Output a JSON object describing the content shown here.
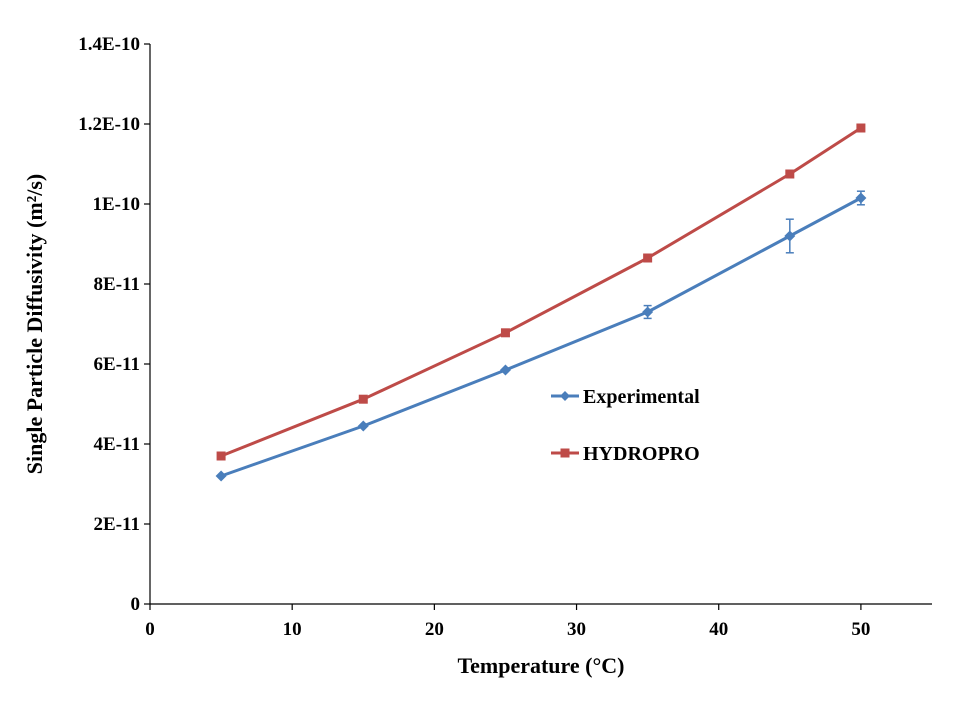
{
  "chart_data": {
    "type": "line",
    "title": "",
    "xlabel": "Temperature (°C)",
    "ylabel": "Single Particle Diffusivity (m²/s)",
    "xlim": [
      0,
      55
    ],
    "ylim": [
      0,
      1.4e-10
    ],
    "x_ticks": [
      0,
      10,
      20,
      30,
      40,
      50
    ],
    "x_tick_labels": [
      "0",
      "10",
      "20",
      "30",
      "40",
      "50"
    ],
    "y_ticks": [
      0,
      2e-11,
      4e-11,
      6e-11,
      8e-11,
      1e-10,
      1.2e-10,
      1.4e-10
    ],
    "y_tick_labels": [
      "0",
      "2E-11",
      "4E-11",
      "6E-11",
      "8E-11",
      "1E-10",
      "1.2E-10",
      "1.4E-10"
    ],
    "grid": false,
    "legend_position": "right-center",
    "series": [
      {
        "name": "Experimental",
        "marker": "diamond",
        "color": "#4A7EBB",
        "x": [
          5,
          15,
          25,
          35,
          45,
          50
        ],
        "y": [
          3.2e-11,
          4.45e-11,
          5.85e-11,
          7.3e-11,
          9.2e-11,
          1.015e-10
        ],
        "error": [
          0,
          0,
          0,
          1.6e-12,
          4.2e-12,
          1.7e-12
        ]
      },
      {
        "name": "HYDROPRO",
        "marker": "square",
        "color": "#BE4B48",
        "x": [
          5,
          15,
          25,
          35,
          45,
          50
        ],
        "y": [
          3.7e-11,
          5.12e-11,
          6.78e-11,
          8.65e-11,
          1.075e-10,
          1.19e-10
        ]
      }
    ]
  }
}
